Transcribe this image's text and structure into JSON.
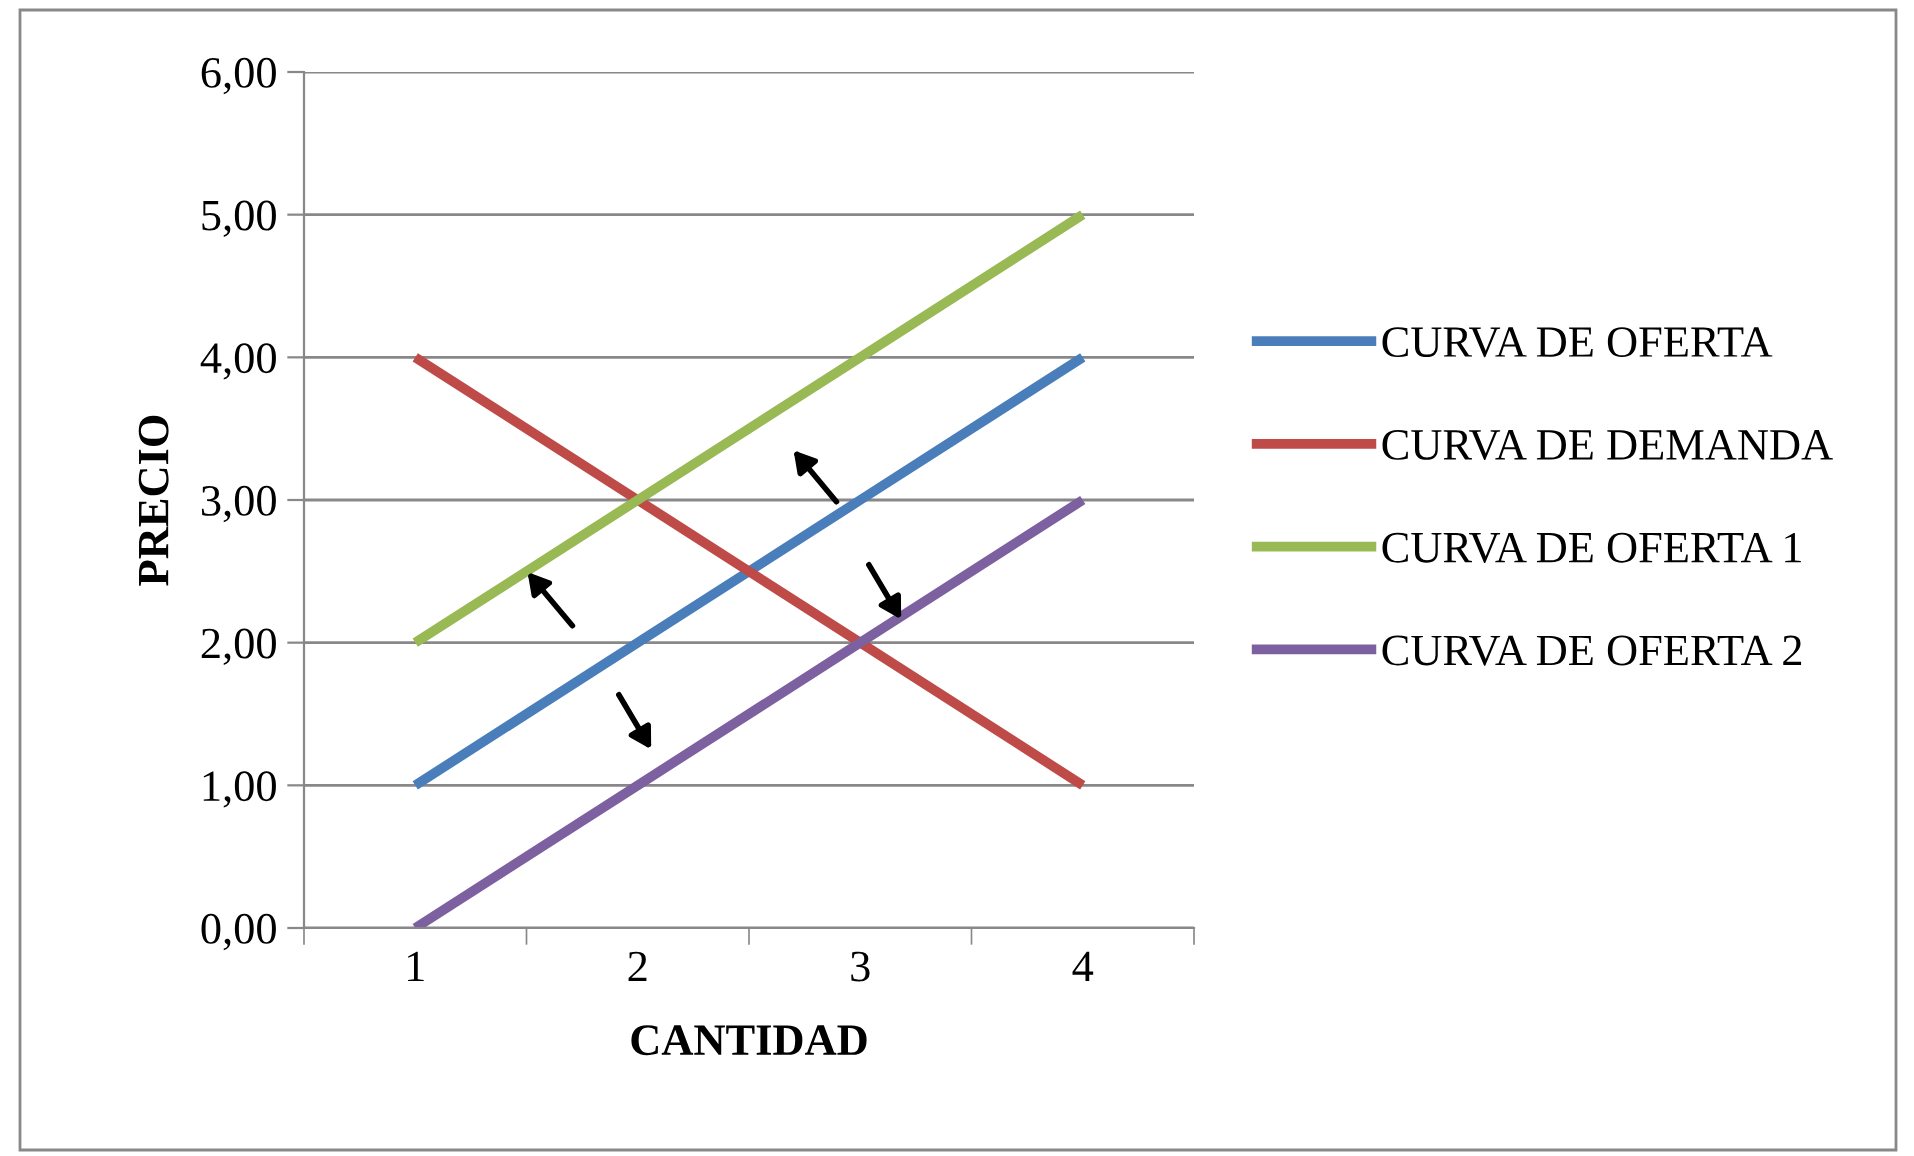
{
  "chart_data": {
    "type": "line",
    "xlabel": "CANTIDAD",
    "ylabel": "PRECIO",
    "categories": [
      "1",
      "2",
      "3",
      "4"
    ],
    "series": [
      {
        "name": "CURVA DE OFERTA",
        "color": "#4a7ebb",
        "values": [
          1,
          2,
          3,
          4
        ]
      },
      {
        "name": "CURVA DE DEMANDA",
        "color": "#be4b48",
        "values": [
          4,
          3,
          2,
          1
        ]
      },
      {
        "name": "CURVA DE OFERTA 1",
        "color": "#98b954",
        "values": [
          2,
          3,
          4,
          5
        ]
      },
      {
        "name": "CURVA DE OFERTA 2",
        "color": "#7d60a0",
        "values": [
          0,
          1,
          2,
          3
        ]
      }
    ],
    "ylim": [
      0,
      6
    ],
    "yticks": [
      {
        "value": 0,
        "label": "0,00"
      },
      {
        "value": 1,
        "label": "1,00"
      },
      {
        "value": 2,
        "label": "2,00"
      },
      {
        "value": 3,
        "label": "3,00"
      },
      {
        "value": 4,
        "label": "4,00"
      },
      {
        "value": 5,
        "label": "5,00"
      },
      {
        "value": 6,
        "label": "6,00"
      }
    ],
    "grid": "y",
    "legend": "right",
    "marker": "none",
    "line_style": "solid"
  }
}
